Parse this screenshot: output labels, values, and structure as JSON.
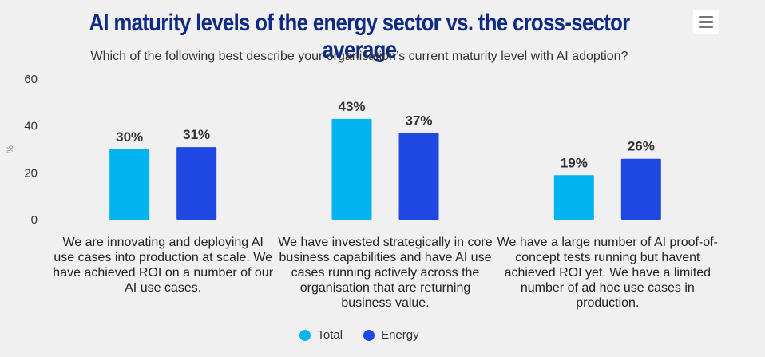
{
  "header": {
    "title": "AI maturity levels of the energy sector vs. the cross-sector average",
    "subtitle": "Which of the following best describe your organisation’s current maturity level with AI adoption?"
  },
  "colors": {
    "total": "#00b4ef",
    "energy": "#1f47e2"
  },
  "chart_data": {
    "type": "bar",
    "title": "AI maturity levels of the energy sector vs. the cross-sector average",
    "subtitle": "Which of the following best describe your organisation’s current maturity level with AI adoption?",
    "categories": [
      "We are innovating and deploying AI use cases into production at scale. We have achieved ROI on a number of our AI use cases.",
      "We have invested strategically in core business capabilities and have AI use cases running actively across the organisation that are returning business value.",
      "We have a large number of AI proof-of-concept tests running but havent achieved ROI yet. We have a limited number of ad hoc use cases in production."
    ],
    "series": [
      {
        "name": "Total",
        "values": [
          30,
          43,
          19
        ],
        "labels": [
          "30%",
          "43%",
          "19%"
        ]
      },
      {
        "name": "Energy",
        "values": [
          31,
          37,
          26
        ],
        "labels": [
          "31%",
          "37%",
          "26%"
        ]
      }
    ],
    "ylabel": "%",
    "xlabel": "",
    "ylim": [
      0,
      60
    ],
    "yticks": [
      "0",
      "20",
      "40",
      "60"
    ],
    "legend": "bottom-center",
    "grid": false
  }
}
